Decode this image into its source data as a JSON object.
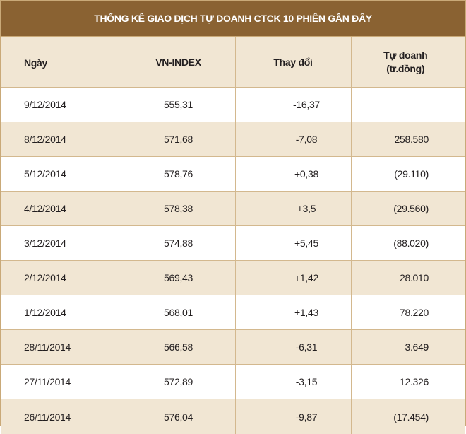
{
  "title": "THỐNG KÊ GIAO DỊCH TỰ DOANH CTCK 10 PHIÊN GẦN ĐÂY",
  "columns": {
    "date": "Ngày",
    "vnindex": "VN-INDEX",
    "change": "Thay đổi",
    "proprietary_line1": "Tự doanh",
    "proprietary_line2": "(tr.đồng)"
  },
  "rows": [
    {
      "date": "9/12/2014",
      "vnindex": "555,31",
      "change": "-16,37",
      "proprietary": ""
    },
    {
      "date": "8/12/2014",
      "vnindex": "571,68",
      "change": "-7,08",
      "proprietary": "258.580"
    },
    {
      "date": "5/12/2014",
      "vnindex": "578,76",
      "change": "+0,38",
      "proprietary": "(29.110)"
    },
    {
      "date": "4/12/2014",
      "vnindex": "578,38",
      "change": "+3,5",
      "proprietary": "(29.560)"
    },
    {
      "date": "3/12/2014",
      "vnindex": "574,88",
      "change": "+5,45",
      "proprietary": "(88.020)"
    },
    {
      "date": "2/12/2014",
      "vnindex": "569,43",
      "change": "+1,42",
      "proprietary": "28.010"
    },
    {
      "date": "1/12/2014",
      "vnindex": "568,01",
      "change": "+1,43",
      "proprietary": "78.220"
    },
    {
      "date": "28/11/2014",
      "vnindex": "566,58",
      "change": "-6,31",
      "proprietary": "3.649"
    },
    {
      "date": "27/11/2014",
      "vnindex": "572,89",
      "change": "-3,15",
      "proprietary": "12.326"
    },
    {
      "date": "26/11/2014",
      "vnindex": "576,04",
      "change": "-9,87",
      "proprietary": "(17.454)"
    }
  ],
  "colors": {
    "title_bg": "#8a6232",
    "stripe": "#f1e6d3",
    "border": "#d3b88e"
  }
}
